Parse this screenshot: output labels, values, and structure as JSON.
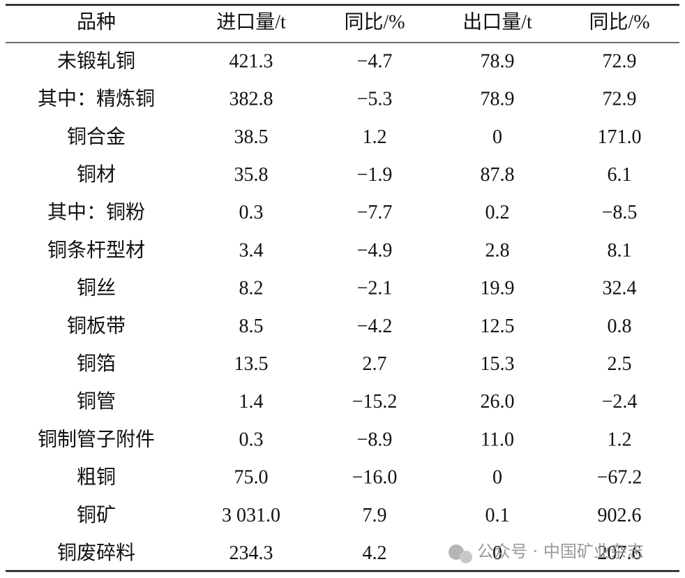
{
  "table": {
    "header": [
      "品种",
      "进口量/t",
      "同比/%",
      "出口量/t",
      "同比/%"
    ],
    "rows": [
      [
        "未锻轧铜",
        "421.3",
        "−4.7",
        "78.9",
        "72.9"
      ],
      [
        "其中：精炼铜",
        "382.8",
        "−5.3",
        "78.9",
        "72.9"
      ],
      [
        "铜合金",
        "38.5",
        "1.2",
        "0",
        "171.0"
      ],
      [
        "铜材",
        "35.8",
        "−1.9",
        "87.8",
        "6.1"
      ],
      [
        "其中：铜粉",
        "0.3",
        "−7.7",
        "0.2",
        "−8.5"
      ],
      [
        "铜条杆型材",
        "3.4",
        "−4.9",
        "2.8",
        "8.1"
      ],
      [
        "铜丝",
        "8.2",
        "−2.1",
        "19.9",
        "32.4"
      ],
      [
        "铜板带",
        "8.5",
        "−4.2",
        "12.5",
        "0.8"
      ],
      [
        "铜箔",
        "13.5",
        "2.7",
        "15.3",
        "2.5"
      ],
      [
        "铜管",
        "1.4",
        "−15.2",
        "26.0",
        "−2.4"
      ],
      [
        "铜制管子附件",
        "0.3",
        "−8.9",
        "11.0",
        "1.2"
      ],
      [
        "粗铜",
        "75.0",
        "−16.0",
        "0",
        "−67.2"
      ],
      [
        "铜矿",
        "3 031.0",
        "7.9",
        "0.1",
        "902.6"
      ],
      [
        "铜废碎料",
        "234.3",
        "4.2",
        "0",
        "207.6"
      ]
    ]
  },
  "watermark": "公众号 · 中国矿业杂志"
}
